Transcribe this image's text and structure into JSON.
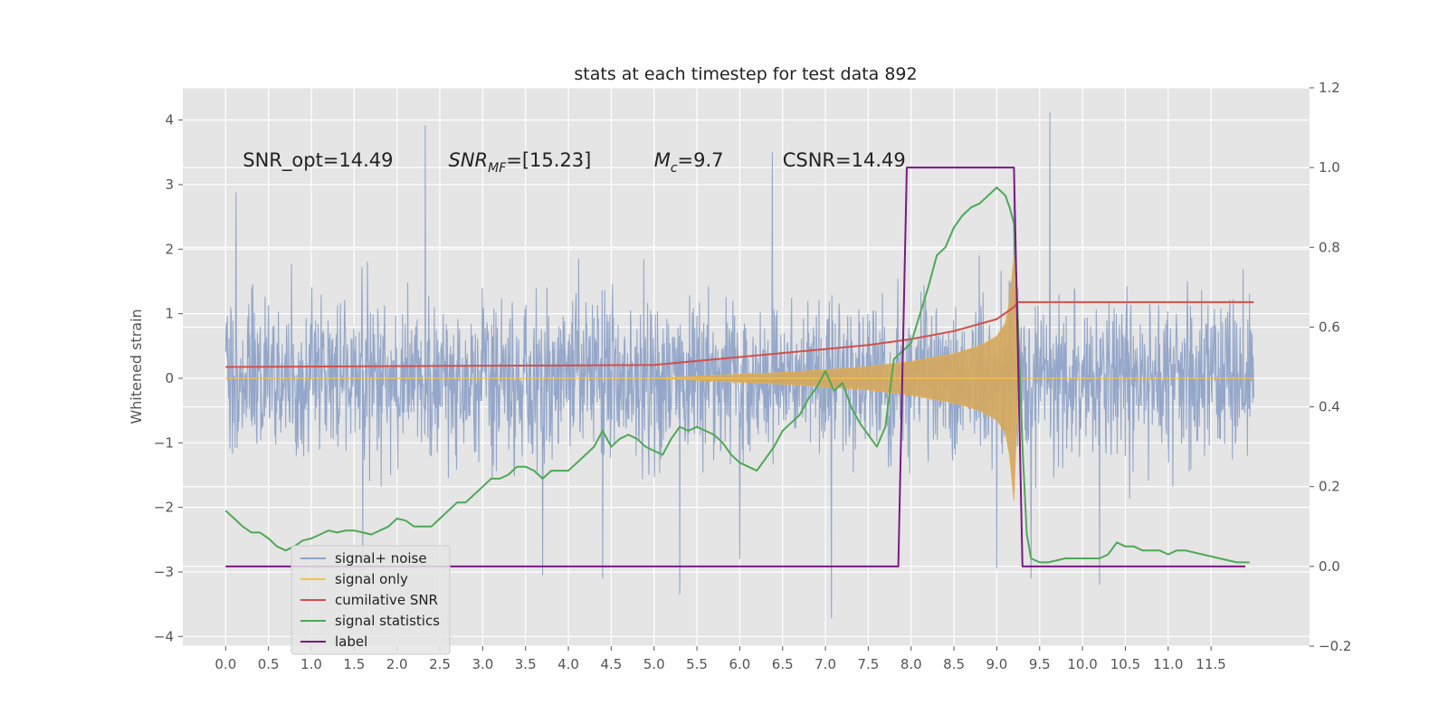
{
  "chart_data": {
    "type": "line",
    "title": "stats at each timestep for test data 892",
    "ylabel": "Whitened strain",
    "xlim": [
      -0.5,
      12.65
    ],
    "ylim": [
      -4.15,
      4.5
    ],
    "ylim_right": [
      -0.2,
      1.2
    ],
    "grid": true,
    "legend_position": "lower-left",
    "x_ticks": [
      "0.0",
      "0.5",
      "1.0",
      "1.5",
      "2.0",
      "2.5",
      "3.0",
      "3.5",
      "4.0",
      "4.5",
      "5.0",
      "5.5",
      "6.0",
      "6.5",
      "7.0",
      "7.5",
      "8.0",
      "8.5",
      "9.0",
      "9.5",
      "10.0",
      "10.5",
      "11.0",
      "11.5"
    ],
    "y_ticks": [
      "4",
      "3",
      "2",
      "1",
      "0",
      "−1",
      "−2",
      "−3",
      "−4"
    ],
    "y_ticks_right": [
      "1.2",
      "1.0",
      "0.8",
      "0.6",
      "0.4",
      "0.2",
      "0.0",
      "−0.2"
    ],
    "annotations": [
      {
        "text": "SNR_opt=14.49",
        "x": 0.2,
        "y": 3.28
      },
      {
        "base": "SNR",
        "sub": "MF",
        "text": "=[15.23]",
        "x": 2.6,
        "y": 3.28
      },
      {
        "base": "M",
        "sub": "c",
        "text": "=9.7",
        "x": 5.0,
        "y": 3.28
      },
      {
        "text": "CSNR=14.49",
        "x": 6.5,
        "y": 3.28
      }
    ],
    "series": [
      {
        "name": "signal+ noise",
        "color": "#8fa3c8",
        "axis": "left",
        "x_range": [
          0,
          12
        ],
        "typical_range": [
          -1.6,
          1.8
        ],
        "spikes": [
          [
            2.33,
            3.92
          ],
          [
            9.62,
            4.12
          ],
          [
            6.38,
            3.5
          ],
          [
            9.2,
            3.05
          ],
          [
            0.12,
            2.88
          ],
          [
            7.07,
            -3.72
          ],
          [
            5.3,
            -3.35
          ],
          [
            10.2,
            -3.2
          ],
          [
            4.4,
            -3.1
          ],
          [
            9.4,
            -3.1
          ],
          [
            3.7,
            -3.05
          ],
          [
            9.0,
            -2.95
          ],
          [
            1.6,
            -2.9
          ],
          [
            6.0,
            -2.8
          ]
        ]
      },
      {
        "name": "signal only",
        "color": "#f5c342",
        "axis": "left",
        "x": [
          0,
          5.0,
          5.5,
          6.0,
          6.5,
          7.0,
          7.5,
          8.0,
          8.5,
          8.8,
          9.0,
          9.1,
          9.15,
          9.2,
          9.25,
          12
        ],
        "envelope": [
          0,
          0,
          0.03,
          0.06,
          0.09,
          0.13,
          0.18,
          0.26,
          0.38,
          0.5,
          0.65,
          0.85,
          1.2,
          1.9,
          0,
          0
        ]
      },
      {
        "name": "cumilative SNR",
        "color": "#d1504a",
        "axis": "right",
        "x": [
          0,
          5.0,
          5.5,
          6.0,
          6.5,
          7.0,
          7.5,
          8.0,
          8.5,
          9.0,
          9.1,
          9.2,
          9.25,
          12
        ],
        "values": [
          0.5,
          0.505,
          0.515,
          0.525,
          0.535,
          0.545,
          0.555,
          0.57,
          0.59,
          0.62,
          0.635,
          0.65,
          0.6625,
          0.6625
        ]
      },
      {
        "name": "signal statistics",
        "color": "#4fa857",
        "axis": "right",
        "x": [
          0,
          0.1,
          0.2,
          0.3,
          0.4,
          0.5,
          0.6,
          0.7,
          0.8,
          0.9,
          1.0,
          1.1,
          1.2,
          1.3,
          1.4,
          1.5,
          1.6,
          1.7,
          1.8,
          1.9,
          2.0,
          2.1,
          2.2,
          2.3,
          2.4,
          2.5,
          2.6,
          2.7,
          2.8,
          2.9,
          3.0,
          3.1,
          3.2,
          3.3,
          3.4,
          3.5,
          3.6,
          3.7,
          3.8,
          3.9,
          4.0,
          4.1,
          4.2,
          4.3,
          4.4,
          4.5,
          4.6,
          4.7,
          4.8,
          4.9,
          5.0,
          5.1,
          5.2,
          5.3,
          5.4,
          5.5,
          5.6,
          5.7,
          5.8,
          5.9,
          6.0,
          6.1,
          6.2,
          6.3,
          6.4,
          6.5,
          6.6,
          6.7,
          6.8,
          6.9,
          7.0,
          7.1,
          7.2,
          7.3,
          7.4,
          7.5,
          7.6,
          7.7,
          7.8,
          7.9,
          8.0,
          8.1,
          8.2,
          8.3,
          8.4,
          8.5,
          8.6,
          8.7,
          8.8,
          8.9,
          9.0,
          9.1,
          9.15,
          9.2,
          9.25,
          9.3,
          9.35,
          9.4,
          9.5,
          9.6,
          9.8,
          10.0,
          10.2,
          10.3,
          10.4,
          10.5,
          10.6,
          10.7,
          10.8,
          10.9,
          11.0,
          11.1,
          11.2,
          11.4,
          11.6,
          11.8,
          11.95
        ],
        "values": [
          0.14,
          0.12,
          0.1,
          0.085,
          0.085,
          0.07,
          0.05,
          0.04,
          0.05,
          0.065,
          0.07,
          0.08,
          0.09,
          0.085,
          0.09,
          0.09,
          0.085,
          0.08,
          0.09,
          0.1,
          0.12,
          0.115,
          0.1,
          0.1,
          0.1,
          0.12,
          0.14,
          0.16,
          0.16,
          0.18,
          0.2,
          0.22,
          0.22,
          0.23,
          0.25,
          0.25,
          0.24,
          0.22,
          0.24,
          0.24,
          0.24,
          0.26,
          0.28,
          0.3,
          0.34,
          0.3,
          0.32,
          0.33,
          0.32,
          0.3,
          0.29,
          0.28,
          0.32,
          0.35,
          0.34,
          0.35,
          0.34,
          0.33,
          0.31,
          0.28,
          0.26,
          0.25,
          0.24,
          0.27,
          0.3,
          0.34,
          0.36,
          0.38,
          0.42,
          0.45,
          0.49,
          0.44,
          0.46,
          0.4,
          0.36,
          0.33,
          0.3,
          0.35,
          0.52,
          0.54,
          0.56,
          0.63,
          0.7,
          0.78,
          0.8,
          0.85,
          0.88,
          0.9,
          0.91,
          0.93,
          0.95,
          0.93,
          0.9,
          0.86,
          0.6,
          0.3,
          0.08,
          0.02,
          0.01,
          0.01,
          0.02,
          0.02,
          0.02,
          0.03,
          0.06,
          0.05,
          0.05,
          0.04,
          0.04,
          0.04,
          0.03,
          0.04,
          0.04,
          0.03,
          0.02,
          0.01,
          0.01
        ]
      },
      {
        "name": "label",
        "color": "#7a1a85",
        "axis": "right",
        "x": [
          0,
          7.85,
          7.95,
          9.2,
          9.3,
          11.9
        ],
        "values": [
          0,
          0,
          1,
          1,
          0,
          0
        ]
      }
    ]
  }
}
